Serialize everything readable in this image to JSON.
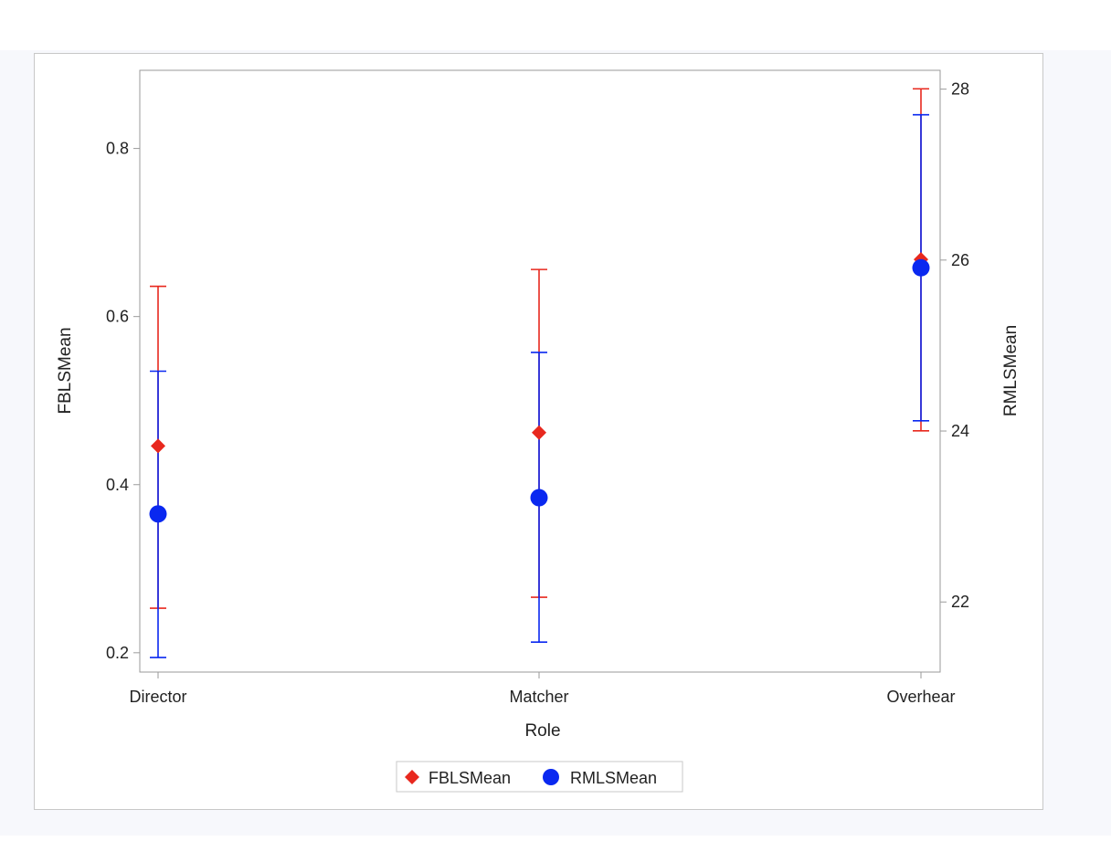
{
  "chart_data": {
    "type": "scatter",
    "title": "",
    "xlabel": "Role",
    "ylabel": "FBLSMean",
    "y2label": "RMLSMean",
    "categories": [
      "Director",
      "Matcher",
      "Overhear"
    ],
    "ylim": [
      0.177,
      0.893
    ],
    "y2lim": [
      21.18,
      28.22
    ],
    "yticks": [
      0.2,
      0.4,
      0.6,
      0.8
    ],
    "ytick_labels": [
      "0.2",
      "0.4",
      "0.6",
      "0.8"
    ],
    "y2ticks": [
      22,
      24,
      26,
      28
    ],
    "y2tick_labels": [
      "22",
      "24",
      "26",
      "28"
    ],
    "grid": false,
    "legend_position": "bottom-center",
    "series": [
      {
        "name": "FBLSMean",
        "axis": "left",
        "marker": "diamond",
        "color": "#e8281e",
        "values": [
          0.446,
          0.462,
          0.668
        ],
        "lower": [
          0.253,
          0.266,
          0.464
        ],
        "upper": [
          0.636,
          0.656,
          0.871
        ]
      },
      {
        "name": "RMLSMean",
        "axis": "right",
        "marker": "circle",
        "color": "#0a28f0",
        "values": [
          23.03,
          23.22,
          25.91
        ],
        "lower": [
          21.35,
          21.53,
          24.12
        ],
        "upper": [
          24.7,
          24.92,
          27.7
        ]
      }
    ]
  }
}
